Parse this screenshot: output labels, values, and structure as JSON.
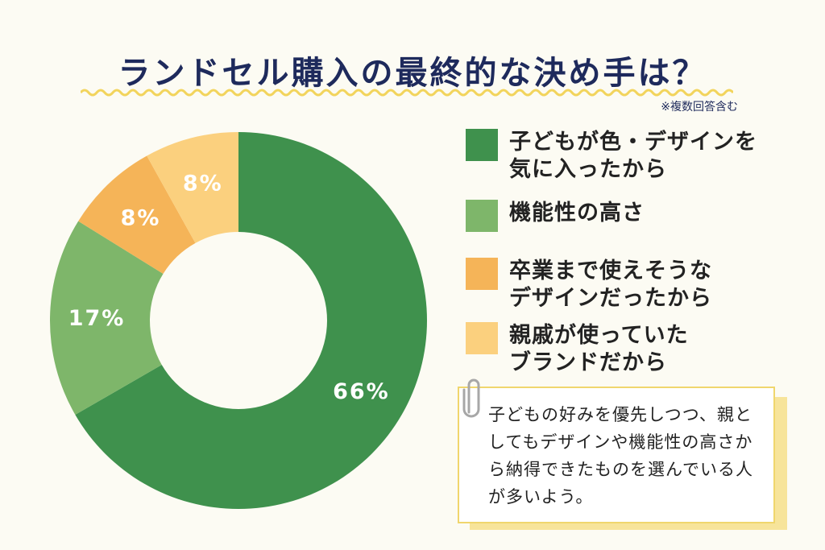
{
  "title": "ランドセル購入の最終的な決め手は？",
  "note": "※複数回答含む",
  "colors": {
    "title": "#1e2a5c",
    "wave": "#f2d45c",
    "background": "#fcfbf3",
    "series": [
      "#3f914d",
      "#7eb66a",
      "#f5b458",
      "#fbd07e"
    ]
  },
  "chart_data": {
    "type": "pie",
    "donut": true,
    "categories": [
      "子どもが色・デザインを\n気に入ったから",
      "機能性の高さ",
      "卒業まで使えそうな\nデザインだったから",
      "親戚が使っていた\nブランドだから"
    ],
    "values": [
      66,
      17,
      8,
      8
    ],
    "labels": [
      "66%",
      "17%",
      "8%",
      "8%"
    ],
    "start": "top, clockwise"
  },
  "comment": "子どもの好みを優先しつつ、親としてもデザインや機能性の高さから納得できたものを選んでいる人が多いよう。"
}
